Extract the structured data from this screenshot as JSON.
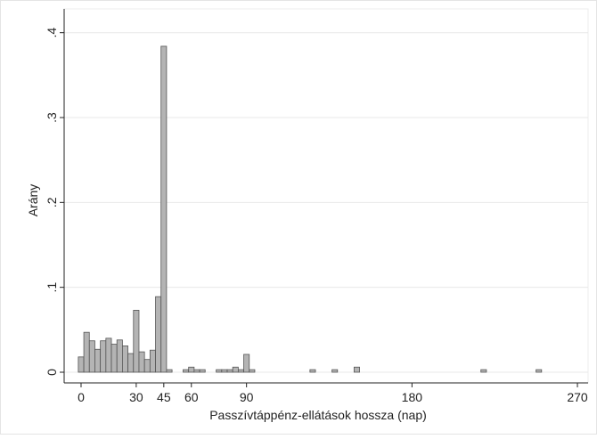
{
  "chart_data": {
    "type": "histogram",
    "xlabel": "Passzívtáppénz-ellátások hossza (nap)",
    "ylabel": "Arány",
    "bins": [
      -1.5,
      1.5,
      4.5,
      7.5,
      10.5,
      13.5,
      16.5,
      19.5,
      22.5,
      25.5,
      28.5,
      31.5,
      34.5,
      37.5,
      40.5,
      43.5,
      46.5,
      49.5,
      52.5,
      55.5,
      58.5,
      61.5,
      64.5,
      67.5,
      70.5,
      73.5,
      76.5,
      79.5,
      82.5,
      85.5,
      88.5,
      91.5,
      94.5,
      97.5,
      100.5,
      103.5,
      106.5,
      109.5,
      112.5,
      115.5,
      118.5,
      121.5,
      124.5,
      127.5,
      130.5,
      133.5,
      136.5,
      139.5,
      142.5,
      145.5,
      148.5,
      151.5,
      154.5,
      157.5,
      160.5,
      163.5,
      166.5,
      169.5,
      172.5,
      175.5,
      178.5,
      181.5,
      184.5,
      187.5,
      190.5,
      193.5,
      196.5,
      199.5,
      202.5,
      205.5,
      208.5,
      211.5,
      214.5,
      217.5,
      220.5,
      223.5,
      226.5,
      229.5,
      232.5,
      235.5,
      238.5,
      241.5,
      244.5,
      247.5,
      250.5
    ],
    "values": [
      0.018,
      0.047,
      0.037,
      0.027,
      0.037,
      0.04,
      0.033,
      0.038,
      0.031,
      0.022,
      0.073,
      0.024,
      0.015,
      0.026,
      0.089,
      0.384,
      0.003,
      0,
      0,
      0.003,
      0.006,
      0.003,
      0.003,
      0,
      0,
      0.003,
      0.003,
      0.003,
      0.006,
      0.003,
      0.021,
      0.003,
      0,
      0,
      0,
      0,
      0,
      0,
      0,
      0,
      0,
      0,
      0.003,
      0,
      0,
      0,
      0.003,
      0,
      0,
      0,
      0.006,
      0,
      0,
      0,
      0,
      0,
      0,
      0,
      0,
      0,
      0,
      0,
      0,
      0,
      0,
      0,
      0,
      0,
      0,
      0,
      0,
      0,
      0,
      0.003,
      0,
      0,
      0,
      0,
      0,
      0,
      0,
      0,
      0,
      0.003
    ],
    "color": "#b4b4b4",
    "xlim": [
      -9.2,
      275.8
    ],
    "xticks": [
      0,
      30,
      45,
      60,
      90,
      180,
      270
    ],
    "ylim": [
      -0.0126,
      0.428
    ],
    "yticks": [
      0,
      {
        "value": 0.1,
        "label": ".1"
      },
      {
        "value": 0.2,
        "label": ".2"
      },
      {
        "value": 0.3,
        "label": ".3"
      },
      {
        "value": 0.4,
        "label": ".4"
      }
    ],
    "grid": true
  }
}
